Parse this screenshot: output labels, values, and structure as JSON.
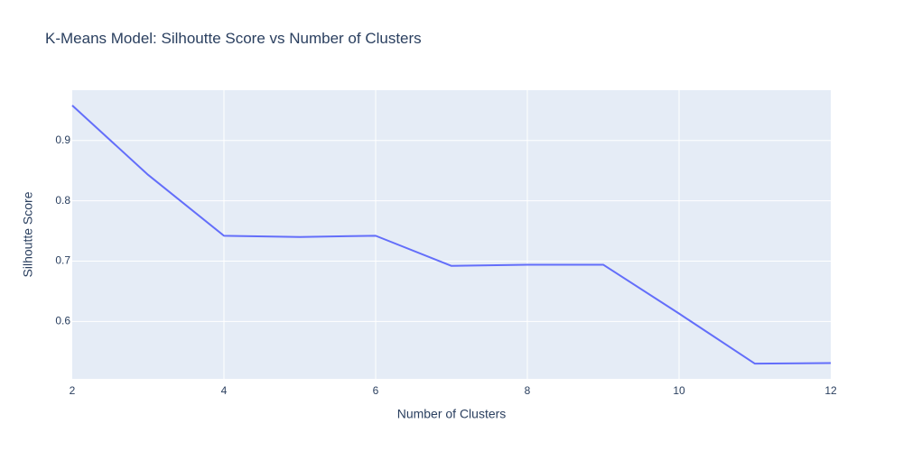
{
  "chart_data": {
    "type": "line",
    "title": "K-Means Model: Silhoutte Score vs Number of Clusters",
    "xlabel": "Number of Clusters",
    "ylabel": "Silhoutte Score",
    "x": [
      2,
      3,
      4,
      5,
      6,
      7,
      8,
      9,
      10,
      11,
      12
    ],
    "series": [
      {
        "values": [
          0.958,
          0.843,
          0.742,
          0.74,
          0.742,
          0.692,
          0.694,
          0.694,
          0.613,
          0.53,
          0.531
        ]
      }
    ],
    "xlim": [
      2,
      12
    ],
    "ylim": [
      0.5048,
      0.9833
    ],
    "x_ticks": [
      2,
      4,
      6,
      8,
      10,
      12
    ],
    "y_ticks": [
      0.6,
      0.7,
      0.8,
      0.9
    ],
    "y_tick_labels": [
      "0.6",
      "0.7",
      "0.8",
      "0.9"
    ],
    "grid": true,
    "legend": "none",
    "colors": {
      "line": "#636efa",
      "plot_background": "#e5ecf6",
      "grid": "#ffffff",
      "text": "#2a3f5f"
    }
  }
}
